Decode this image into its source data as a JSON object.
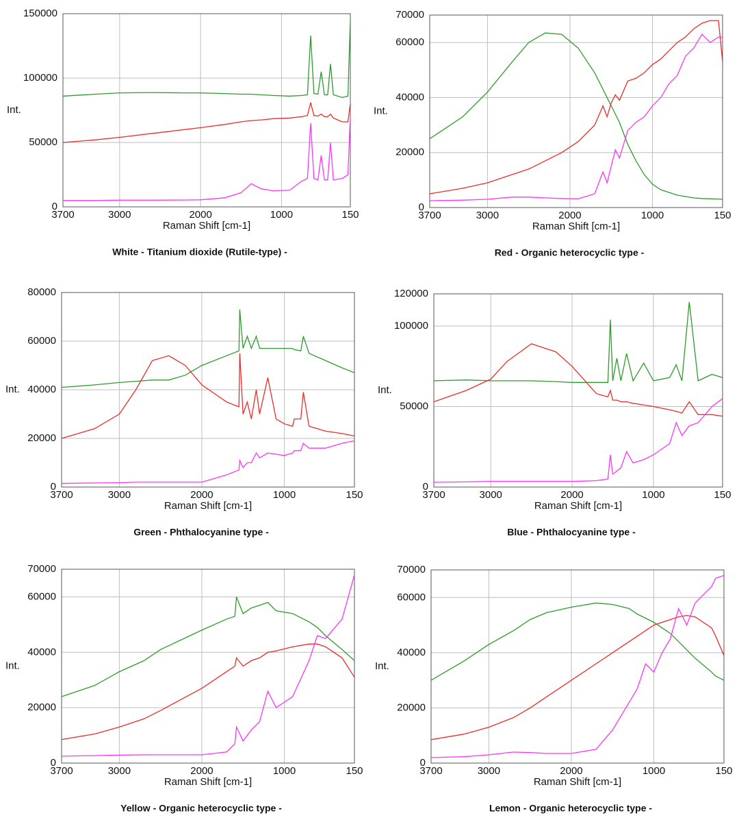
{
  "chart_data": [
    {
      "type": "line",
      "title": "White - Titanium dioxide (Rutile-type) -",
      "x_label": "Raman Shift [cm-1]",
      "y_label": "Int.",
      "xlim": [
        3700,
        150
      ],
      "ylim": [
        0,
        150000
      ],
      "xticks": [
        3700,
        3000,
        2000,
        1000,
        150
      ],
      "yticks": [
        0,
        50000,
        100000,
        150000
      ],
      "grid": true,
      "x": [
        3700,
        3300,
        3000,
        2600,
        2200,
        2000,
        1700,
        1500,
        1375,
        1250,
        1100,
        900,
        750,
        680,
        640,
        600,
        550,
        510,
        470,
        430,
        395,
        360,
        250,
        180,
        150
      ],
      "series": [
        {
          "color": "#2e9a2e",
          "values": [
            86000,
            87500,
            88500,
            88800,
            88500,
            88500,
            88000,
            87500,
            87500,
            87000,
            86500,
            86000,
            86500,
            87000,
            133000,
            88000,
            87500,
            105000,
            87000,
            87000,
            111000,
            87000,
            85000,
            86000,
            145000
          ]
        },
        {
          "color": "#ee2a2a",
          "values": [
            50000,
            52000,
            54000,
            57000,
            60000,
            61500,
            64000,
            66000,
            67000,
            67500,
            68500,
            69000,
            70000,
            71000,
            81000,
            71000,
            70500,
            72000,
            70000,
            70000,
            72000,
            69000,
            66000,
            66000,
            80000
          ]
        },
        {
          "color": "#ff33ff",
          "values": [
            5000,
            5000,
            5200,
            5200,
            5300,
            5500,
            7000,
            11000,
            18000,
            14000,
            12500,
            13000,
            20000,
            22000,
            65000,
            22000,
            21000,
            40000,
            21000,
            21000,
            50000,
            21000,
            22000,
            25000,
            70000
          ]
        }
      ]
    },
    {
      "type": "line",
      "title": "Red - Organic heterocyclic type -",
      "x_label": "Raman Shift [cm-1]",
      "y_label": "Int.",
      "xlim": [
        3700,
        150
      ],
      "ylim": [
        0,
        70000
      ],
      "xticks": [
        3700,
        3000,
        2000,
        1000,
        150
      ],
      "yticks": [
        0,
        20000,
        40000,
        60000,
        70000
      ],
      "grid": true,
      "x": [
        3700,
        3300,
        3000,
        2700,
        2500,
        2300,
        2100,
        1900,
        1700,
        1600,
        1550,
        1500,
        1450,
        1400,
        1300,
        1200,
        1100,
        1000,
        900,
        800,
        700,
        600,
        500,
        400,
        300,
        200,
        150
      ],
      "series": [
        {
          "color": "#2e9a2e",
          "values": [
            25000,
            33000,
            42000,
            53000,
            60000,
            63500,
            63000,
            58000,
            49000,
            43000,
            40000,
            37000,
            34000,
            31000,
            23000,
            17000,
            12000,
            8500,
            6500,
            5500,
            4500,
            4000,
            3500,
            3300,
            3200,
            3100,
            3000
          ]
        },
        {
          "color": "#ee2a2a",
          "values": [
            5000,
            7000,
            9000,
            12000,
            14000,
            17000,
            20000,
            24000,
            30000,
            37000,
            33000,
            38000,
            41000,
            39000,
            46000,
            47000,
            49000,
            52000,
            54000,
            57000,
            60000,
            62000,
            65000,
            67000,
            68000,
            68000,
            53000
          ]
        },
        {
          "color": "#ff33ff",
          "values": [
            2500,
            2700,
            3000,
            3800,
            3800,
            3500,
            3300,
            3200,
            5000,
            13000,
            9000,
            15000,
            21000,
            18000,
            28000,
            31000,
            33000,
            37000,
            40000,
            45000,
            48000,
            55000,
            58000,
            63000,
            60000,
            62000,
            62000
          ]
        }
      ]
    },
    {
      "type": "line",
      "title": "Green - Phthalocyanine type -",
      "x_label": "Raman Shift [cm-1]",
      "y_label": "Int.",
      "xlim": [
        3700,
        150
      ],
      "ylim": [
        0,
        80000
      ],
      "xticks": [
        3700,
        3000,
        2000,
        1000,
        150
      ],
      "yticks": [
        0,
        20000,
        40000,
        60000,
        80000
      ],
      "grid": true,
      "x": [
        3700,
        3300,
        3000,
        2800,
        2600,
        2400,
        2200,
        2000,
        1700,
        1550,
        1540,
        1500,
        1450,
        1400,
        1340,
        1300,
        1200,
        1100,
        1000,
        900,
        880,
        800,
        770,
        700,
        500,
        300,
        150
      ],
      "series": [
        {
          "color": "#2e9a2e",
          "values": [
            41000,
            42000,
            43000,
            43500,
            44000,
            44000,
            46000,
            50000,
            54000,
            56000,
            73000,
            57000,
            62000,
            57000,
            62000,
            57000,
            57000,
            57000,
            57000,
            57000,
            56500,
            56000,
            62000,
            55000,
            52000,
            49000,
            47000
          ]
        },
        {
          "color": "#ee2a2a",
          "values": [
            20000,
            24000,
            30000,
            40000,
            52000,
            54000,
            50000,
            42000,
            35000,
            33000,
            55000,
            30000,
            35000,
            28000,
            40000,
            30000,
            45000,
            28000,
            26000,
            25000,
            28000,
            28000,
            39000,
            25000,
            23000,
            22000,
            21000
          ]
        },
        {
          "color": "#ff33ff",
          "values": [
            1500,
            1700,
            1800,
            2000,
            2000,
            2000,
            2000,
            2000,
            5000,
            7000,
            11000,
            8000,
            10000,
            10000,
            14000,
            12000,
            14000,
            13500,
            13000,
            14000,
            15000,
            15000,
            18000,
            16000,
            16000,
            18000,
            19000
          ]
        }
      ]
    },
    {
      "type": "line",
      "title": "Blue - Phthalocyanine type -",
      "x_label": "Raman Shift [cm-1]",
      "y_label": "Int.",
      "xlim": [
        3700,
        150
      ],
      "ylim": [
        0,
        120000
      ],
      "xticks": [
        3700,
        3000,
        2000,
        1000,
        150
      ],
      "yticks": [
        0,
        50000,
        100000,
        120000
      ],
      "grid": true,
      "x": [
        3700,
        3300,
        3000,
        2800,
        2500,
        2200,
        2000,
        1700,
        1560,
        1530,
        1500,
        1450,
        1400,
        1330,
        1250,
        1120,
        1000,
        800,
        720,
        650,
        560,
        450,
        280,
        150
      ],
      "series": [
        {
          "color": "#2e9a2e",
          "values": [
            66000,
            66500,
            66000,
            66000,
            66000,
            65500,
            65000,
            65000,
            65000,
            104000,
            66000,
            80000,
            66000,
            83000,
            66000,
            77000,
            66000,
            68000,
            76000,
            66000,
            115000,
            66000,
            70000,
            68000
          ]
        },
        {
          "color": "#ee2a2a",
          "values": [
            53000,
            60000,
            67000,
            78000,
            89000,
            84000,
            75000,
            58000,
            56000,
            60000,
            54000,
            54000,
            53000,
            53000,
            52000,
            51000,
            50000,
            48000,
            47000,
            46000,
            53000,
            45000,
            45000,
            44000
          ]
        },
        {
          "color": "#ff33ff",
          "values": [
            3000,
            3200,
            3500,
            3500,
            3500,
            3500,
            3500,
            4000,
            5000,
            20000,
            8000,
            10000,
            12000,
            22000,
            15000,
            17000,
            20000,
            27000,
            40000,
            32000,
            38000,
            40000,
            50000,
            55000
          ]
        }
      ]
    },
    {
      "type": "line",
      "title": "Yellow - Organic heterocyclic type -",
      "x_label": "Raman Shift [cm-1]",
      "y_label": "Int.",
      "xlim": [
        3700,
        150
      ],
      "ylim": [
        0,
        70000
      ],
      "xticks": [
        3700,
        3000,
        2000,
        1000,
        150
      ],
      "yticks": [
        0,
        20000,
        40000,
        60000,
        70000
      ],
      "grid": true,
      "x": [
        3700,
        3300,
        3000,
        2700,
        2500,
        2000,
        1700,
        1600,
        1580,
        1500,
        1400,
        1300,
        1200,
        1100,
        900,
        700,
        600,
        500,
        300,
        150
      ],
      "series": [
        {
          "color": "#2e9a2e",
          "values": [
            24000,
            28000,
            33000,
            37000,
            41000,
            48000,
            52000,
            53000,
            60000,
            54000,
            56000,
            57000,
            58000,
            55000,
            54000,
            51000,
            49000,
            46000,
            41000,
            37000
          ]
        },
        {
          "color": "#ee2a2a",
          "values": [
            8500,
            10500,
            13000,
            16000,
            19000,
            27000,
            33000,
            35000,
            38000,
            35000,
            37000,
            38000,
            40000,
            40500,
            42000,
            43000,
            43000,
            42000,
            38000,
            31000
          ]
        },
        {
          "color": "#ff33ff",
          "values": [
            2500,
            2700,
            2900,
            3000,
            3000,
            3000,
            4000,
            7000,
            13000,
            8000,
            12000,
            15000,
            26000,
            20000,
            24000,
            37000,
            46000,
            45000,
            52000,
            68000
          ]
        }
      ]
    },
    {
      "type": "line",
      "title": "Lemon - Organic heterocyclic type -",
      "x_label": "Raman Shift [cm-1]",
      "y_label": "Int.",
      "xlim": [
        3700,
        150
      ],
      "ylim": [
        0,
        70000
      ],
      "xticks": [
        3700,
        3000,
        2000,
        1000,
        150
      ],
      "yticks": [
        0,
        20000,
        40000,
        60000,
        70000
      ],
      "grid": true,
      "x": [
        3700,
        3300,
        3000,
        2700,
        2500,
        2300,
        2000,
        1700,
        1500,
        1300,
        1200,
        1100,
        1000,
        900,
        800,
        700,
        600,
        500,
        300,
        250,
        150
      ],
      "series": [
        {
          "color": "#2e9a2e",
          "values": [
            30000,
            37000,
            43000,
            48000,
            52000,
            54500,
            56500,
            58000,
            57500,
            56000,
            54000,
            52500,
            51000,
            49000,
            47000,
            44000,
            41000,
            38000,
            33000,
            31500,
            30000
          ]
        },
        {
          "color": "#ee2a2a",
          "values": [
            8500,
            10500,
            13000,
            16500,
            20000,
            24000,
            30000,
            36000,
            40000,
            44000,
            46000,
            48000,
            50000,
            51000,
            52000,
            53000,
            53500,
            53000,
            49000,
            46000,
            39000
          ]
        },
        {
          "color": "#ff33ff",
          "values": [
            2000,
            2300,
            3000,
            4000,
            3800,
            3500,
            3500,
            5000,
            12000,
            22000,
            27000,
            36000,
            33000,
            40000,
            45000,
            56000,
            50000,
            58000,
            64000,
            67000,
            68000
          ]
        }
      ]
    }
  ]
}
